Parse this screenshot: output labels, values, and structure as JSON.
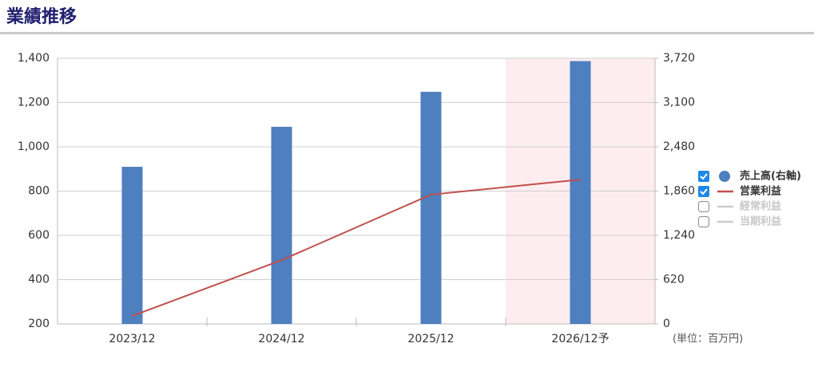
{
  "title": "業績推移",
  "chart_data": {
    "type": "bar",
    "categories": [
      "2023/12",
      "2024/12",
      "2025/12",
      "2026/12予"
    ],
    "highlight_category": 3,
    "highlight_color": "#fdedf0",
    "series": [
      {
        "name": "売上高(右軸)",
        "type": "bar",
        "axis": "y2",
        "color": "#4e7fbf",
        "checked": true,
        "values": [
          2200,
          2760,
          3250,
          3680
        ]
      },
      {
        "name": "営業利益",
        "type": "line",
        "color": "#c0504d",
        "checked": true,
        "values": [
          236,
          488,
          784,
          852
        ]
      },
      {
        "name": "経常利益",
        "type": "line",
        "color": "#cccccc",
        "checked": false,
        "values": [
          null,
          null,
          null,
          null
        ]
      },
      {
        "name": "当期利益",
        "type": "line",
        "color": "#cccccc",
        "checked": false,
        "values": [
          null,
          null,
          null,
          null
        ]
      }
    ],
    "ylim": [
      200,
      1400
    ],
    "yticks": [
      200,
      400,
      600,
      800,
      {
        "value": 1000,
        "label": "1,000"
      },
      {
        "value": 1200,
        "label": "1,200"
      },
      {
        "value": 1400,
        "label": "1,400"
      }
    ],
    "y2lim": [
      0,
      3720
    ],
    "y2ticks": [
      0,
      620,
      {
        "value": 1240,
        "label": "1,240"
      },
      {
        "value": 1860,
        "label": "1,860"
      },
      {
        "value": 2480,
        "label": "2,480"
      },
      {
        "value": 3100,
        "label": "3,100"
      },
      {
        "value": 3720,
        "label": "3,720"
      }
    ],
    "unit_label": "(単位：百万円)",
    "grid": true
  }
}
